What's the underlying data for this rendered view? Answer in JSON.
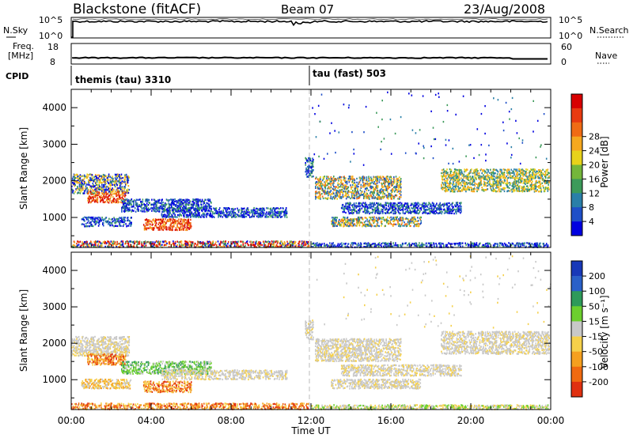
{
  "header": {
    "station": "Blackstone (fitACF)",
    "beam": "Beam 07",
    "date": "23/Aug/2008"
  },
  "side_labels": {
    "nsky": "N.Sky",
    "nsearch": "N.Search",
    "freq_line1": "Freq.",
    "freq_line2": "[MHz]",
    "cpid": "CPID",
    "nave": "Nave"
  },
  "small_axes": {
    "nsky_ticks": [
      "10^5",
      "10^0"
    ],
    "nsearch_ticks": [
      "10^5",
      "10^0"
    ],
    "freq_ticks": [
      "18",
      "8"
    ],
    "nave_ticks": [
      "60",
      "0"
    ]
  },
  "cpid": {
    "segments": [
      {
        "label": "themis (tau) 3310",
        "start_hour": 0
      },
      {
        "label": "tau (fast) 503",
        "start_hour": 12
      }
    ]
  },
  "chart_data": [
    {
      "type": "heatmap",
      "title": "",
      "xlabel": "",
      "ylabel": "Slant Range [km]",
      "xlim_hours": [
        0,
        24
      ],
      "ylim": [
        180,
        4500
      ],
      "y_ticks": [
        "1000",
        "2000",
        "3000",
        "4000"
      ],
      "x_ticks": [
        "00:00",
        "04:00",
        "08:00",
        "12:00",
        "16:00",
        "20:00",
        "00:00"
      ],
      "colorbar": {
        "label": "Power [dB]",
        "ticks": [
          "4",
          "8",
          "12",
          "16",
          "20",
          "24",
          "28"
        ],
        "colors": [
          "#0000e0",
          "#1f4fc8",
          "#2a7fa8",
          "#3c9a5a",
          "#74b63a",
          "#e8d21a",
          "#f5a81f",
          "#f06b14",
          "#e83a10",
          "#d80000"
        ]
      }
    },
    {
      "type": "heatmap",
      "title": "",
      "xlabel": "Time UT",
      "ylabel": "Slant Range [km]",
      "xlim_hours": [
        0,
        24
      ],
      "ylim": [
        180,
        4500
      ],
      "y_ticks": [
        "1000",
        "2000",
        "3000",
        "4000"
      ],
      "x_ticks": [
        "00:00",
        "04:00",
        "08:00",
        "12:00",
        "16:00",
        "20:00",
        "00:00"
      ],
      "colorbar": {
        "label": "Velocity [m s^-1]",
        "ticks": [
          "200",
          "100",
          "50",
          "15",
          "-15",
          "-50",
          "-100",
          "-200"
        ],
        "colors": [
          "#1838b8",
          "#2a60c8",
          "#2e9a5a",
          "#6ccf2e",
          "#c8c8c8",
          "#f5d04a",
          "#f5a01f",
          "#f06a10",
          "#e03010"
        ]
      }
    }
  ]
}
